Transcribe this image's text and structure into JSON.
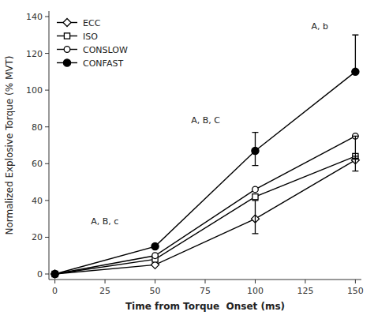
{
  "chart_data": {
    "type": "line",
    "xlabel": "Time from Torque  Onset (ms)",
    "ylabel": "Normalized Explosive Torque (% MVT)",
    "x": [
      0,
      50,
      100,
      150
    ],
    "xlim": [
      -3,
      153
    ],
    "ylim": [
      -3,
      143
    ],
    "xticks": [
      0,
      25,
      50,
      75,
      100,
      125,
      150
    ],
    "yticks": [
      0,
      20,
      40,
      60,
      80,
      100,
      120,
      140
    ],
    "grid": false,
    "legend": "upper left",
    "series": [
      {
        "name": "ECC",
        "color": "#000000",
        "marker": "diamond",
        "values": [
          0,
          5,
          30,
          62
        ],
        "error_minus": [
          null,
          null,
          8,
          null
        ],
        "error_plus": [
          null,
          null,
          10,
          null
        ]
      },
      {
        "name": "ISO",
        "color": "#000000",
        "marker": "square",
        "values": [
          0,
          8,
          42,
          64
        ],
        "error_minus": [
          null,
          null,
          null,
          8
        ],
        "error_plus": [
          null,
          null,
          null,
          0
        ]
      },
      {
        "name": "CONSLOW",
        "color": "#000000",
        "marker": "circle",
        "values": [
          0,
          10,
          46,
          75
        ],
        "error_minus": [
          null,
          null,
          null,
          12
        ],
        "error_plus": [
          null,
          null,
          null,
          0
        ]
      },
      {
        "name": "CONFAST",
        "color": "#000000",
        "marker": "filled-circle",
        "values": [
          0,
          15,
          67,
          110
        ],
        "error_minus": [
          null,
          null,
          8,
          0
        ],
        "error_plus": [
          null,
          null,
          10,
          20
        ]
      }
    ],
    "annotations": [
      {
        "text": "A, B, c",
        "x": 18,
        "y": 27
      },
      {
        "text": "A, B, C",
        "x": 68,
        "y": 82
      },
      {
        "text": "A, b",
        "x": 128,
        "y": 133
      }
    ]
  }
}
